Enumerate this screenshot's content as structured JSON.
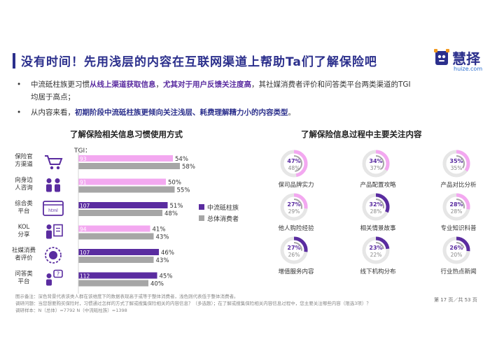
{
  "header": {
    "title": "没有时间！先用浅层的内容在互联网渠道上帮助Ta们了解保险吧",
    "logo_text": "慧择",
    "logo_url": "huize.com"
  },
  "bullets": [
    {
      "seg1": "中流砥柱族更习惯",
      "seg2": "从线上渠道获取信息",
      "seg3": "，",
      "seg4": "尤其对于用户反馈关注度高",
      "seg5": "，其社媒消费者评价和问答类平台两类渠道的TGI",
      "seg6": "均居于高点；"
    },
    {
      "seg1": "从内容来看，",
      "seg2": "初期阶段中流砥柱族更倾向关注浅层、耗费理解精力小的内容类型",
      "seg3": "。"
    }
  ],
  "left_section_title": "了解保险相关信息习惯使用方式",
  "right_section_title": "了解保险信息过程中主要关注内容",
  "chart_data": [
    {
      "type": "bar",
      "tgi_label": "TGI：",
      "categories": [
        "保险官方渠道",
        "向身边人咨询",
        "综合类平台",
        "KOL分享",
        "社媒消费者评价",
        "问答类平台"
      ],
      "category_lines": [
        [
          "保险官",
          "方渠道"
        ],
        [
          "向身边",
          "人咨询"
        ],
        [
          "综合类",
          "平台"
        ],
        [
          "KOL",
          "分享"
        ],
        [
          "社媒消费",
          "者评价"
        ],
        [
          "问答类",
          "平台"
        ]
      ],
      "category_icons": [
        "cart-icon",
        "people-icon",
        "web-icon",
        "speaker-icon",
        "brain-icon",
        "qa-icon"
      ],
      "series": [
        {
          "name": "中流砥柱族",
          "values": [
            54,
            50,
            51,
            41,
            46,
            45
          ],
          "labels": [
            "54%",
            "50%",
            "51%",
            "41%",
            "46%",
            "45%"
          ],
          "tgi": [
            "93",
            "91",
            "107",
            "94",
            "107",
            "112"
          ]
        },
        {
          "name": "总体消费者",
          "values": [
            58,
            55,
            48,
            43,
            43,
            40
          ],
          "labels": [
            "58%",
            "55%",
            "48%",
            "43%",
            "43%",
            "40%"
          ]
        }
      ],
      "fill_colors": [
        [
          "#f3a8f0",
          "#f3a8f0",
          "#5a2ca0",
          "#f3a8f0",
          "#5a2ca0",
          "#5a2ca0"
        ],
        [
          "#a6a6a6",
          "#a6a6a6",
          "#a6a6a6",
          "#a6a6a6",
          "#a6a6a6",
          "#a6a6a6"
        ]
      ],
      "legend": [
        {
          "name": "中流砥柱族",
          "color": "#5a2ca0"
        },
        {
          "name": "总体消费者",
          "color": "#a6a6a6"
        }
      ],
      "xlim": [
        0,
        100
      ]
    },
    {
      "type": "pie",
      "items": [
        {
          "label": "保司品牌实力",
          "core": 47,
          "total": 48,
          "core_label": "47%",
          "total_label": "48%"
        },
        {
          "label": "产品配置攻略",
          "core": 34,
          "total": 37,
          "core_label": "34%",
          "total_label": "37%"
        },
        {
          "label": "产品对比分析",
          "core": 35,
          "total": 35,
          "core_label": "35%",
          "total_label": "35%"
        },
        {
          "label": "他人购险经验",
          "core": 27,
          "total": 29,
          "core_label": "27%",
          "total_label": "29%"
        },
        {
          "label": "相关情景故事",
          "core": 32,
          "total": 28,
          "core_label": "32%",
          "total_label": "28%"
        },
        {
          "label": "专业知识科普",
          "core": 28,
          "total": 28,
          "core_label": "28%",
          "total_label": "28%"
        },
        {
          "label": "增值服务内容",
          "core": 27,
          "total": 26,
          "core_label": "27%",
          "total_label": "26%"
        },
        {
          "label": "线下机构分布",
          "core": 23,
          "total": 22,
          "core_label": "23%",
          "total_label": "22%"
        },
        {
          "label": "行业热点新闻",
          "core": 26,
          "total": 20,
          "core_label": "26%",
          "total_label": "20%"
        }
      ],
      "colors": {
        "core_light": "#f3a8f0",
        "core_dark": "#5a2ca0",
        "total": "#a6a6a6",
        "track": "#e6e6e6"
      },
      "dark_items": [
        4,
        6,
        7,
        8
      ]
    }
  ],
  "footnotes": {
    "line1": "图示备注：深色背景代表该类人群在该维度下的数据表现高于或等于整体消费者，浅色则代表低于整体消费者。",
    "line2": "调研问题：当您想要购买保险时，习惯通过怎样的方式了解或搜集保险相关的内容信息？（多选题）；在了解或搜集保险相关内容信息过程中，您主要关注哪些内容（限选3项）？",
    "line3": "调研样本：N（总体）=7792    N（中流砥柱族）=1398"
  },
  "page": "第 17 页／共 53 页"
}
